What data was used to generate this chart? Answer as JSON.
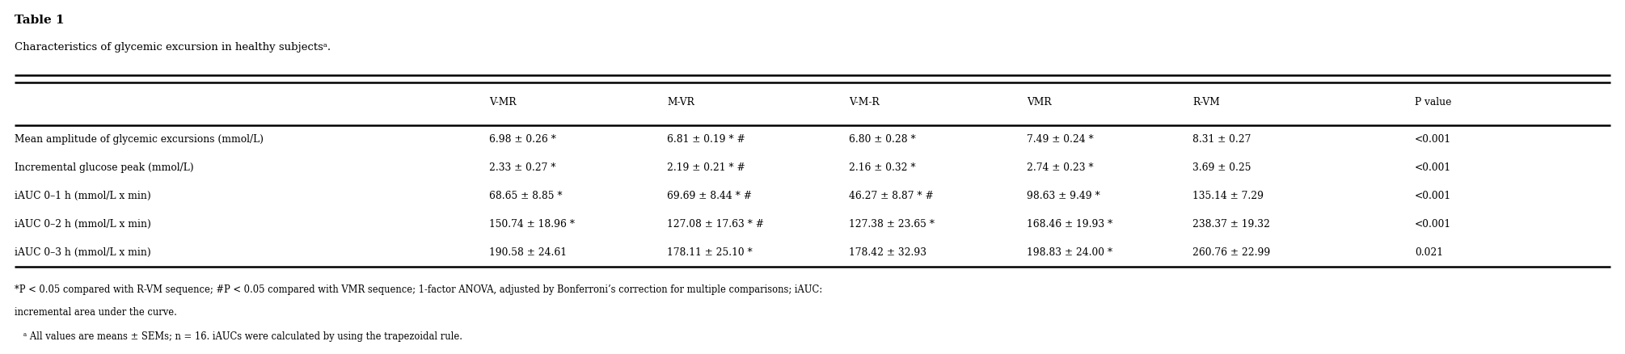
{
  "title": "Table 1",
  "subtitle": "Characteristics of glycemic excursion in healthy subjectsᵃ.",
  "columns": [
    "",
    "V-MR",
    "M-VR",
    "V-M-R",
    "VMR",
    "R-VM",
    "P value"
  ],
  "rows": [
    [
      "Mean amplitude of glycemic excursions (mmol/L)",
      "6.98 ± 0.26 *",
      "6.81 ± 0.19 * #",
      "6.80 ± 0.28 *",
      "7.49 ± 0.24 *",
      "8.31 ± 0.27",
      "<0.001"
    ],
    [
      "Incremental glucose peak (mmol/L)",
      "2.33 ± 0.27 *",
      "2.19 ± 0.21 * #",
      "2.16 ± 0.32 *",
      "2.74 ± 0.23 *",
      "3.69 ± 0.25",
      "<0.001"
    ],
    [
      "iAUC 0–1 h (mmol/L x min)",
      "68.65 ± 8.85 *",
      "69.69 ± 8.44 * #",
      "46.27 ± 8.87 * #",
      "98.63 ± 9.49 *",
      "135.14 ± 7.29",
      "<0.001"
    ],
    [
      "iAUC 0–2 h (mmol/L x min)",
      "150.74 ± 18.96 *",
      "127.08 ± 17.63 * #",
      "127.38 ± 23.65 *",
      "168.46 ± 19.93 *",
      "238.37 ± 19.32",
      "<0.001"
    ],
    [
      "iAUC 0–3 h (mmol/L x min)",
      "190.58 ± 24.61",
      "178.11 ± 25.10 *",
      "178.42 ± 32.93",
      "198.83 ± 24.00 *",
      "260.76 ± 22.99",
      "0.021"
    ]
  ],
  "footnote1": "*P < 0.05 compared with R-VM sequence; #P < 0.05 compared with VMR sequence; 1-factor ANOVA, adjusted by Bonferroni’s correction for multiple comparisons; iAUC:",
  "footnote2": "incremental area under the curve.",
  "footnote3": "   ᵃ All values are means ± SEMs; n = 16. iAUCs were calculated by using the trapezoidal rule.",
  "fig_width": 20.1,
  "fig_height": 4.38,
  "dpi": 100
}
